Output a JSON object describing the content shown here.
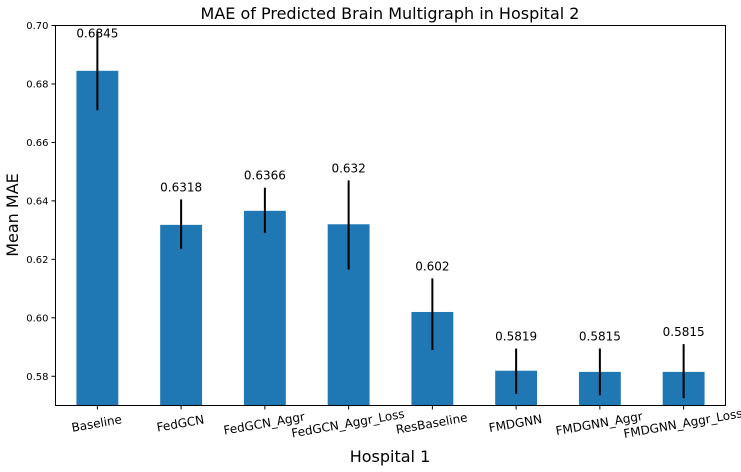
{
  "chart_data": {
    "type": "bar",
    "title": "MAE of Predicted Brain Multigraph in Hospital 2",
    "xlabel": "Hospital 1",
    "ylabel": "Mean MAE",
    "ylim": [
      0.57,
      0.7
    ],
    "yticks": [
      "0.58",
      "0.60",
      "0.62",
      "0.64",
      "0.66",
      "0.68",
      "0.70"
    ],
    "grid": false,
    "categories": [
      "Baseline",
      "FedGCN",
      "FedGCN_Aggr",
      "FedGCN_Aggr_Loss",
      "ResBaseline",
      "FMDGNN",
      "FMDGNN_Aggr",
      "FMDGNN_Aggr_Loss"
    ],
    "values": [
      0.6845,
      0.6318,
      0.6366,
      0.632,
      0.602,
      0.5819,
      0.5815,
      0.5815
    ],
    "value_labels": [
      "0.6845",
      "0.6318",
      "0.6366",
      "0.632",
      "0.602",
      "0.5819",
      "0.5815",
      "0.5815"
    ],
    "error_low": [
      0.671,
      0.6235,
      0.629,
      0.6165,
      0.589,
      0.574,
      0.5735,
      0.5725
    ],
    "error_high": [
      0.698,
      0.6405,
      0.6445,
      0.647,
      0.6135,
      0.5895,
      0.5895,
      0.591
    ],
    "bar_color": "#1f77b4",
    "error_color": "#000000"
  }
}
